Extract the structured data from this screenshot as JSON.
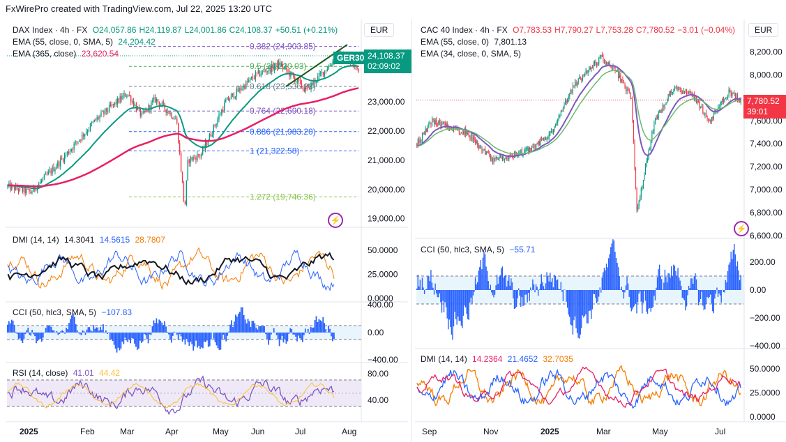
{
  "header": "FxWirePro created with TradingView.com, Jul 22, 2025 13:20 UTC",
  "left": {
    "title": "DAX Index · 4h · FX",
    "ohlc": [
      {
        "label": "O",
        "value": "24,057.86"
      },
      {
        "label": "H",
        "value": "24,119.87"
      },
      {
        "label": "L",
        "value": "24,001.86"
      },
      {
        "label": "C",
        "value": "24,108.37"
      },
      {
        "label": "",
        "value": "+50.51 (+0.21%)"
      }
    ],
    "ema1_label": "EMA (55, close, 0, SMA, 5)",
    "ema1_value": "24,204.42",
    "ema2_label": "EMA (365, close)",
    "ema2_value": "23,620.54",
    "currency": "EUR",
    "ticker": "GER30",
    "last_price": "24,108.37",
    "countdown": "02:09:02",
    "fib_labels": [
      "0.382 (24,903.85)",
      "0.5 (24,220.03)",
      "0.618 (23,536.23)",
      "0.764 (22,690.18)",
      "0.886 (21,983.20)",
      "1 (21,322.58)",
      "1.272 (19,746.36)"
    ],
    "price_axis": [
      "23,000.00",
      "22,000.00",
      "21,000.00",
      "20,000.00",
      "19,000.00"
    ],
    "dmi": {
      "label": "DMI (14, 14)",
      "v1": "14.3041",
      "v2": "14.5615",
      "v3": "28.7807",
      "axis": [
        "50.0000",
        "25.0000",
        "0.0000"
      ]
    },
    "cci": {
      "label": "CCI (50, hlc3, SMA, 5)",
      "value": "−107.83",
      "axis": [
        "400.00",
        "0.00",
        "−400.00"
      ]
    },
    "rsi": {
      "label": "RSI (14, close)",
      "v1": "41.01",
      "v2": "44.42",
      "axis": [
        "80.00",
        "40.00"
      ]
    },
    "time_axis": [
      "2025",
      "Feb",
      "Mar",
      "Apr",
      "May",
      "Jun",
      "Jul",
      "Aug"
    ]
  },
  "right": {
    "title": "CAC 40 Index · 4h · FX",
    "ohlc": [
      {
        "label": "O",
        "value": "7,783.53"
      },
      {
        "label": "H",
        "value": "7,790.27"
      },
      {
        "label": "L",
        "value": "7,753.28"
      },
      {
        "label": "C",
        "value": "7,780.52"
      },
      {
        "label": "",
        "value": "−3.01 (−0.04%)"
      }
    ],
    "ema1_label": "EMA (55, close, 0)",
    "ema1_value": "7,801.13",
    "ema2_label": "EMA (34, close, 0, SMA, 5)",
    "currency": "EUR",
    "last_price": "7,780.52",
    "countdown": "39:01",
    "price_axis": [
      "8,200.00",
      "8,000.00",
      "7,800.00",
      "7,600.00",
      "7,400.00",
      "7,200.00",
      "7,000.00",
      "6,800.00",
      "6,600.00"
    ],
    "cci": {
      "label": "CCI (50, hlc3, SMA, 5)",
      "value": "−55.71",
      "axis": [
        "200.00",
        "0.00",
        "−200.00",
        "−400.00"
      ]
    },
    "dmi": {
      "label": "DMI (14, 14)",
      "v1": "14.2364",
      "v2": "21.4652",
      "v3": "32.7035",
      "axis": [
        "50.0000",
        "25.0000",
        "0.0000"
      ]
    },
    "time_axis": [
      "Sep",
      "Nov",
      "2025",
      "Mar",
      "May",
      "Jul"
    ]
  },
  "colors": {
    "up": "#089981",
    "down": "#f23645",
    "ema55": "#089981",
    "ema365": "#e91e63",
    "cci": "#2962ff",
    "rsi": "#7e57c2",
    "rsi_ma": "#fbc02d",
    "dmi_plus": "#2962ff",
    "dmi_minus": "#f57c00",
    "adx": "#131722"
  },
  "chart_data": [
    {
      "type": "candlestick",
      "title": "DAX Index · 4h · FX",
      "x_range": [
        "2024-12-20",
        "2025-08-08"
      ],
      "ylim": [
        18800,
        25300
      ],
      "series_keypoints": [
        {
          "date": "2024-12-20",
          "close": 20100
        },
        {
          "date": "2025-01-03",
          "close": 19900
        },
        {
          "date": "2025-01-20",
          "close": 20900
        },
        {
          "date": "2025-02-12",
          "close": 22400
        },
        {
          "date": "2025-03-03",
          "close": 23300
        },
        {
          "date": "2025-03-12",
          "close": 22500
        },
        {
          "date": "2025-03-20",
          "close": 23100
        },
        {
          "date": "2025-04-02",
          "close": 22400
        },
        {
          "date": "2025-04-07",
          "close": 19300
        },
        {
          "date": "2025-04-09",
          "close": 21000
        },
        {
          "date": "2025-04-17",
          "close": 21200
        },
        {
          "date": "2025-05-02",
          "close": 23000
        },
        {
          "date": "2025-05-20",
          "close": 23900
        },
        {
          "date": "2025-06-04",
          "close": 24300
        },
        {
          "date": "2025-06-20",
          "close": 23400
        },
        {
          "date": "2025-07-10",
          "close": 24600
        },
        {
          "date": "2025-07-22",
          "close": 24108
        }
      ],
      "fib_levels": [
        24903.85,
        24220.03,
        23536.23,
        22690.18,
        21983.2,
        21322.58,
        19746.36
      ]
    },
    {
      "type": "candlestick",
      "title": "CAC 40 Index · 4h · FX",
      "x_range": [
        "2024-08-25",
        "2025-07-28"
      ],
      "ylim": [
        6600,
        8300
      ],
      "series_keypoints": [
        {
          "date": "2024-08-25",
          "close": 7400
        },
        {
          "date": "2024-09-10",
          "close": 7600
        },
        {
          "date": "2024-09-25",
          "close": 7550
        },
        {
          "date": "2024-10-15",
          "close": 7500
        },
        {
          "date": "2024-11-10",
          "close": 7250
        },
        {
          "date": "2024-12-01",
          "close": 7300
        },
        {
          "date": "2024-12-20",
          "close": 7350
        },
        {
          "date": "2025-01-10",
          "close": 7500
        },
        {
          "date": "2025-02-01",
          "close": 7900
        },
        {
          "date": "2025-03-01",
          "close": 8150
        },
        {
          "date": "2025-03-15",
          "close": 8050
        },
        {
          "date": "2025-04-01",
          "close": 7800
        },
        {
          "date": "2025-04-07",
          "close": 6800
        },
        {
          "date": "2025-04-25",
          "close": 7600
        },
        {
          "date": "2025-05-15",
          "close": 7900
        },
        {
          "date": "2025-06-05",
          "close": 7800
        },
        {
          "date": "2025-06-20",
          "close": 7600
        },
        {
          "date": "2025-07-10",
          "close": 7850
        },
        {
          "date": "2025-07-22",
          "close": 7780
        }
      ]
    }
  ]
}
